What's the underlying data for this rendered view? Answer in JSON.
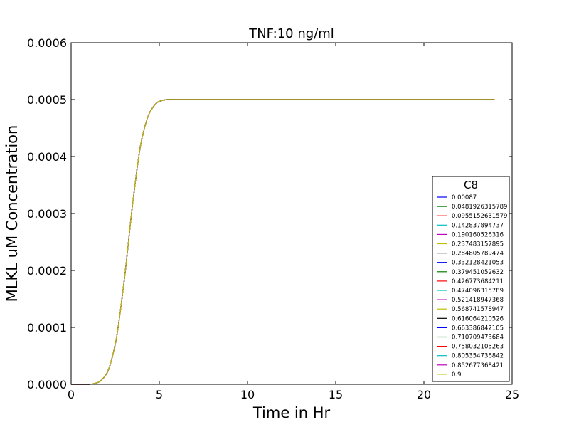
{
  "chart_data": {
    "type": "line",
    "title": "TNF:10 ng/ml",
    "xlabel": "Time in Hr",
    "ylabel": "MLKL uM Concentration",
    "xlim": [
      0,
      25
    ],
    "ylim": [
      0,
      0.0006
    ],
    "xticks": [
      0,
      5,
      10,
      15,
      20,
      25
    ],
    "xtick_labels": [
      "0",
      "5",
      "10",
      "15",
      "20",
      "25"
    ],
    "yticks": [
      0,
      0.0001,
      0.0002,
      0.0003,
      0.0004,
      0.0005,
      0.0006
    ],
    "ytick_labels": [
      "0.0000",
      "0.0001",
      "0.0002",
      "0.0003",
      "0.0004",
      "0.0005",
      "0.0006"
    ],
    "grid": false,
    "legend": {
      "title": "C8",
      "placement": "lower-right"
    },
    "x": [
      0,
      1,
      1.5,
      2,
      2.5,
      3,
      3.5,
      4,
      4.5,
      5,
      5.5,
      6,
      8,
      10,
      12,
      14,
      16,
      18,
      20,
      22,
      24
    ],
    "series": [
      {
        "name": "0.00087",
        "color": "#0000ff",
        "values": [
          0,
          0,
          3e-06,
          1.8e-05,
          7e-05,
          0.00018,
          0.00032,
          0.00043,
          0.00048,
          0.000497,
          0.0005,
          0.0005,
          0.0005,
          0.0005,
          0.0005,
          0.0005,
          0.0005,
          0.0005,
          0.0005,
          0.0005,
          0.0005
        ]
      },
      {
        "name": "0.0481926315789",
        "color": "#008000",
        "values": [
          0,
          0,
          3e-06,
          1.8e-05,
          7e-05,
          0.00018,
          0.00032,
          0.00043,
          0.00048,
          0.000497,
          0.0005,
          0.0005,
          0.0005,
          0.0005,
          0.0005,
          0.0005,
          0.0005,
          0.0005,
          0.0005,
          0.0005,
          0.0005
        ]
      },
      {
        "name": "0.0955152631579",
        "color": "#ff0000",
        "values": [
          0,
          0,
          3e-06,
          1.8e-05,
          7e-05,
          0.00018,
          0.00032,
          0.00043,
          0.00048,
          0.000497,
          0.0005,
          0.0005,
          0.0005,
          0.0005,
          0.0005,
          0.0005,
          0.0005,
          0.0005,
          0.0005,
          0.0005,
          0.0005
        ]
      },
      {
        "name": "0.142837894737",
        "color": "#00bfbf",
        "values": [
          0,
          0,
          3e-06,
          1.8e-05,
          7e-05,
          0.00018,
          0.00032,
          0.00043,
          0.00048,
          0.000497,
          0.0005,
          0.0005,
          0.0005,
          0.0005,
          0.0005,
          0.0005,
          0.0005,
          0.0005,
          0.0005,
          0.0005,
          0.0005
        ]
      },
      {
        "name": "0.190160526316",
        "color": "#bf00bf",
        "values": [
          0,
          0,
          3e-06,
          1.8e-05,
          7e-05,
          0.00018,
          0.00032,
          0.00043,
          0.00048,
          0.000497,
          0.0005,
          0.0005,
          0.0005,
          0.0005,
          0.0005,
          0.0005,
          0.0005,
          0.0005,
          0.0005,
          0.0005,
          0.0005
        ]
      },
      {
        "name": "0.237483157895",
        "color": "#bfbf00",
        "values": [
          0,
          0,
          3e-06,
          1.8e-05,
          7e-05,
          0.00018,
          0.00032,
          0.00043,
          0.00048,
          0.000497,
          0.0005,
          0.0005,
          0.0005,
          0.0005,
          0.0005,
          0.0005,
          0.0005,
          0.0005,
          0.0005,
          0.0005,
          0.0005
        ]
      },
      {
        "name": "0.284805789474",
        "color": "#000000",
        "values": [
          0,
          0,
          3e-06,
          1.8e-05,
          7e-05,
          0.00018,
          0.00032,
          0.00043,
          0.00048,
          0.000497,
          0.0005,
          0.0005,
          0.0005,
          0.0005,
          0.0005,
          0.0005,
          0.0005,
          0.0005,
          0.0005,
          0.0005,
          0.0005
        ]
      },
      {
        "name": "0.332128421053",
        "color": "#0000ff",
        "values": [
          0,
          0,
          3e-06,
          1.8e-05,
          7e-05,
          0.00018,
          0.00032,
          0.00043,
          0.00048,
          0.000497,
          0.0005,
          0.0005,
          0.0005,
          0.0005,
          0.0005,
          0.0005,
          0.0005,
          0.0005,
          0.0005,
          0.0005,
          0.0005
        ]
      },
      {
        "name": "0.379451052632",
        "color": "#008000",
        "values": [
          0,
          0,
          3e-06,
          1.8e-05,
          7e-05,
          0.00018,
          0.00032,
          0.00043,
          0.00048,
          0.000497,
          0.0005,
          0.0005,
          0.0005,
          0.0005,
          0.0005,
          0.0005,
          0.0005,
          0.0005,
          0.0005,
          0.0005,
          0.0005
        ]
      },
      {
        "name": "0.426773684211",
        "color": "#ff0000",
        "values": [
          0,
          0,
          3e-06,
          1.8e-05,
          7e-05,
          0.00018,
          0.00032,
          0.00043,
          0.00048,
          0.000497,
          0.0005,
          0.0005,
          0.0005,
          0.0005,
          0.0005,
          0.0005,
          0.0005,
          0.0005,
          0.0005,
          0.0005,
          0.0005
        ]
      },
      {
        "name": "0.474096315789",
        "color": "#00bfbf",
        "values": [
          0,
          0,
          3e-06,
          1.8e-05,
          7e-05,
          0.00018,
          0.00032,
          0.00043,
          0.00048,
          0.000497,
          0.0005,
          0.0005,
          0.0005,
          0.0005,
          0.0005,
          0.0005,
          0.0005,
          0.0005,
          0.0005,
          0.0005,
          0.0005
        ]
      },
      {
        "name": "0.521418947368",
        "color": "#bf00bf",
        "values": [
          0,
          0,
          3e-06,
          1.8e-05,
          7e-05,
          0.00018,
          0.00032,
          0.00043,
          0.00048,
          0.000497,
          0.0005,
          0.0005,
          0.0005,
          0.0005,
          0.0005,
          0.0005,
          0.0005,
          0.0005,
          0.0005,
          0.0005,
          0.0005
        ]
      },
      {
        "name": "0.568741578947",
        "color": "#bfbf00",
        "values": [
          0,
          0,
          3e-06,
          1.8e-05,
          7e-05,
          0.00018,
          0.00032,
          0.00043,
          0.00048,
          0.000497,
          0.0005,
          0.0005,
          0.0005,
          0.0005,
          0.0005,
          0.0005,
          0.0005,
          0.0005,
          0.0005,
          0.0005,
          0.0005
        ]
      },
      {
        "name": "0.616064210526",
        "color": "#000000",
        "values": [
          0,
          0,
          3e-06,
          1.8e-05,
          7e-05,
          0.00018,
          0.00032,
          0.00043,
          0.00048,
          0.000497,
          0.0005,
          0.0005,
          0.0005,
          0.0005,
          0.0005,
          0.0005,
          0.0005,
          0.0005,
          0.0005,
          0.0005,
          0.0005
        ]
      },
      {
        "name": "0.663386842105",
        "color": "#0000ff",
        "values": [
          0,
          0,
          3e-06,
          1.8e-05,
          7e-05,
          0.00018,
          0.00032,
          0.00043,
          0.00048,
          0.000497,
          0.0005,
          0.0005,
          0.0005,
          0.0005,
          0.0005,
          0.0005,
          0.0005,
          0.0005,
          0.0005,
          0.0005,
          0.0005
        ]
      },
      {
        "name": "0.710709473684",
        "color": "#008000",
        "values": [
          0,
          0,
          3e-06,
          1.8e-05,
          7e-05,
          0.00018,
          0.00032,
          0.00043,
          0.00048,
          0.000497,
          0.0005,
          0.0005,
          0.0005,
          0.0005,
          0.0005,
          0.0005,
          0.0005,
          0.0005,
          0.0005,
          0.0005,
          0.0005
        ]
      },
      {
        "name": "0.758032105263",
        "color": "#ff0000",
        "values": [
          0,
          0,
          3e-06,
          1.8e-05,
          7e-05,
          0.00018,
          0.00032,
          0.00043,
          0.00048,
          0.000497,
          0.0005,
          0.0005,
          0.0005,
          0.0005,
          0.0005,
          0.0005,
          0.0005,
          0.0005,
          0.0005,
          0.0005,
          0.0005
        ]
      },
      {
        "name": "0.805354736842",
        "color": "#00bfbf",
        "values": [
          0,
          0,
          3e-06,
          1.8e-05,
          7e-05,
          0.00018,
          0.00032,
          0.00043,
          0.00048,
          0.000497,
          0.0005,
          0.0005,
          0.0005,
          0.0005,
          0.0005,
          0.0005,
          0.0005,
          0.0005,
          0.0005,
          0.0005,
          0.0005
        ]
      },
      {
        "name": "0.852677368421",
        "color": "#bf00bf",
        "values": [
          0,
          0,
          3e-06,
          1.8e-05,
          7e-05,
          0.00018,
          0.00032,
          0.00043,
          0.00048,
          0.000497,
          0.0005,
          0.0005,
          0.0005,
          0.0005,
          0.0005,
          0.0005,
          0.0005,
          0.0005,
          0.0005,
          0.0005,
          0.0005
        ]
      },
      {
        "name": "0.9",
        "color": "#bfbf00",
        "values": [
          0,
          0,
          3e-06,
          1.8e-05,
          7e-05,
          0.00018,
          0.00032,
          0.00043,
          0.00048,
          0.000497,
          0.0005,
          0.0005,
          0.0005,
          0.0005,
          0.0005,
          0.0005,
          0.0005,
          0.0005,
          0.0005,
          0.0005,
          0.0005
        ]
      }
    ]
  }
}
